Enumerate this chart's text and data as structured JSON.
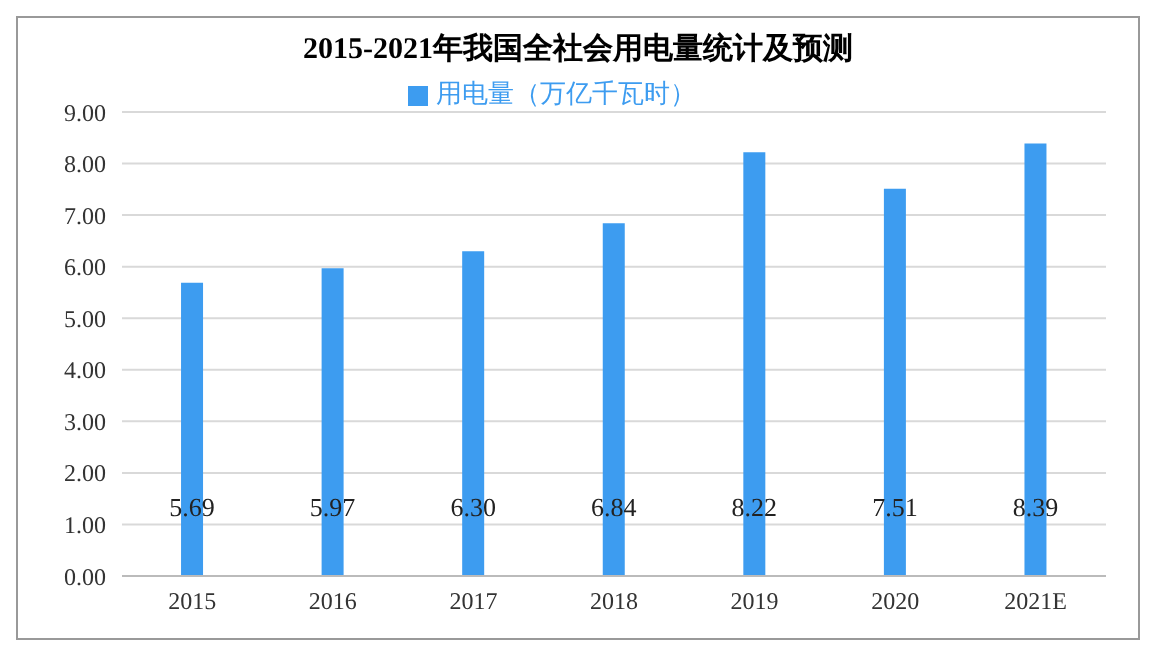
{
  "chart_data": {
    "type": "bar",
    "title": "2015-2021年我国全社会用电量统计及预测",
    "categories": [
      "2015",
      "2016",
      "2017",
      "2018",
      "2019",
      "2020",
      "2021E"
    ],
    "series": [
      {
        "name": "用电量（万亿千瓦时）",
        "color": "#3d9cf0",
        "values": [
          5.69,
          5.97,
          6.3,
          6.84,
          8.22,
          7.51,
          8.39
        ]
      }
    ],
    "value_labels": [
      "5.69",
      "5.97",
      "6.30",
      "6.84",
      "8.22",
      "7.51",
      "8.39"
    ],
    "ylim": [
      0,
      9
    ],
    "yticks": [
      {
        "value": 0,
        "label": "0.00"
      },
      {
        "value": 1,
        "label": "1.00"
      },
      {
        "value": 2,
        "label": "2.00"
      },
      {
        "value": 3,
        "label": "3.00"
      },
      {
        "value": 4,
        "label": "4.00"
      },
      {
        "value": 5,
        "label": "5.00"
      },
      {
        "value": 6,
        "label": "6.00"
      },
      {
        "value": 7,
        "label": "7.00"
      },
      {
        "value": 8,
        "label": "8.00"
      },
      {
        "value": 9,
        "label": "9.00"
      }
    ],
    "grid": "y",
    "legend": "top"
  }
}
